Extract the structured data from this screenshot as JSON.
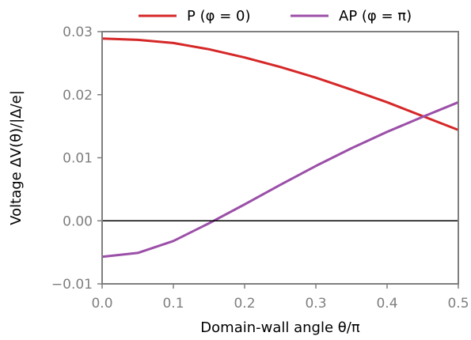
{
  "chart_data": {
    "type": "line",
    "xlabel": "Domain-wall angle θ/π",
    "ylabel": "Voltage ΔV(θ)/|Δ/e|",
    "xlim": [
      0.0,
      0.5
    ],
    "ylim": [
      -0.01,
      0.03
    ],
    "xticks": [
      0.0,
      0.1,
      0.2,
      0.3,
      0.4,
      0.5
    ],
    "xtick_labels": [
      "0.0",
      "0.1",
      "0.2",
      "0.3",
      "0.4",
      "0.5"
    ],
    "yticks": [
      -0.01,
      0.0,
      0.01,
      0.02,
      0.03
    ],
    "ytick_labels": [
      "−0.01",
      "0.00",
      "0.01",
      "0.02",
      "0.03"
    ],
    "zero_line": 0.0,
    "grid": false,
    "legend_position": "top-outside",
    "x": [
      0.0,
      0.05,
      0.1,
      0.15,
      0.2,
      0.25,
      0.3,
      0.35,
      0.4,
      0.45,
      0.5
    ],
    "series": [
      {
        "name": "P (φ = 0)",
        "color": "#d62728",
        "values": [
          0.0289,
          0.0287,
          0.0282,
          0.0272,
          0.0259,
          0.0244,
          0.0227,
          0.0208,
          0.0188,
          0.0166,
          0.0144
        ]
      },
      {
        "name": "AP (φ = π)",
        "color": "#9b4fa8",
        "values": [
          -0.0057,
          -0.0051,
          -0.0032,
          -0.0004,
          0.0026,
          0.0057,
          0.0087,
          0.0115,
          0.0141,
          0.0165,
          0.0188
        ]
      }
    ]
  }
}
